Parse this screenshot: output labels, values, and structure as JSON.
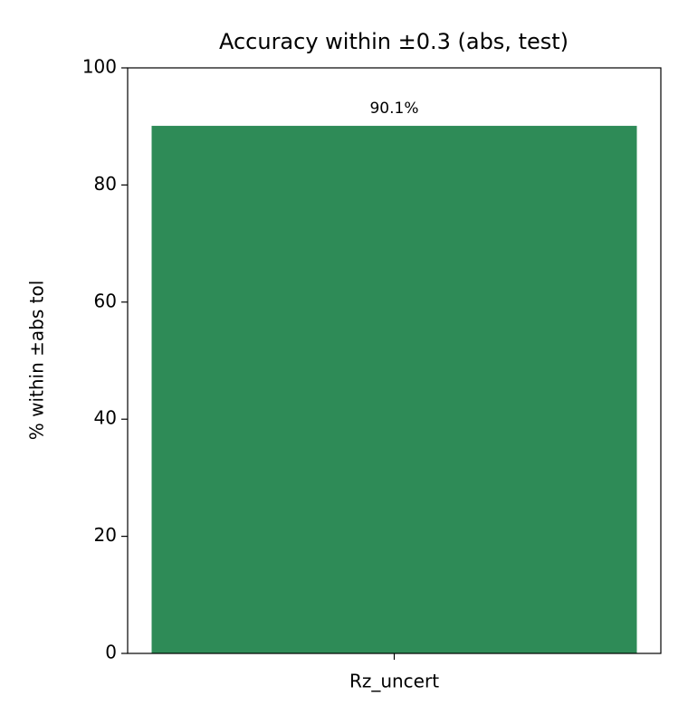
{
  "chart_data": {
    "type": "bar",
    "title": "Accuracy within ±0.3 (abs, test)",
    "y_label": "% within ±abs tol",
    "categories": [
      "Rz_uncert"
    ],
    "values": [
      90.1
    ],
    "value_labels": [
      "90.1%"
    ],
    "color": "#2e8b57",
    "ylim": [
      0,
      100
    ],
    "yticks": [
      0,
      20,
      40,
      60,
      80,
      100
    ]
  }
}
